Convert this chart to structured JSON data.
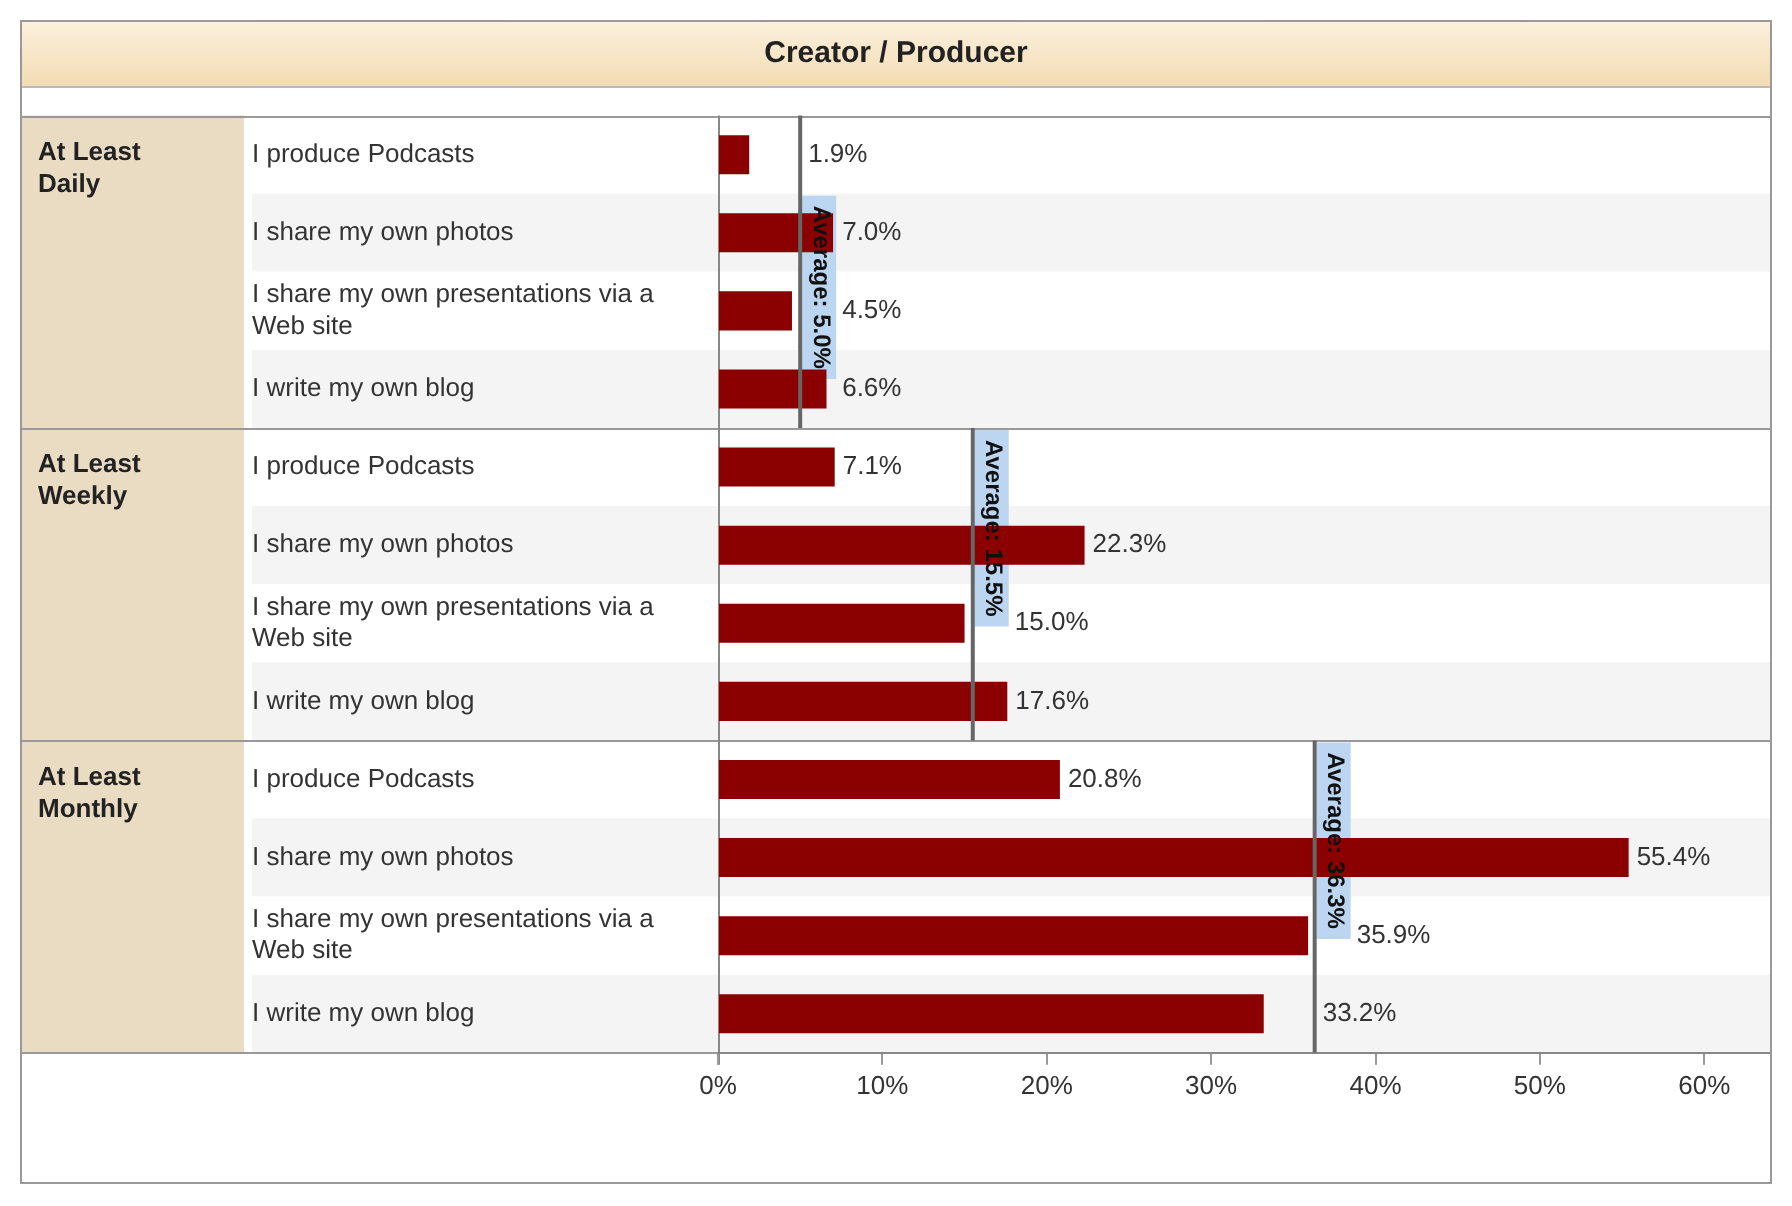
{
  "chart_data": {
    "type": "bar",
    "orientation": "horizontal",
    "title": "Creator / Producer",
    "categories": [
      "I produce Podcasts",
      "I share my own photos",
      "I share my own presentations via a Web site",
      "I write my own blog",
      "I produce Podcasts",
      "I share my own photos",
      "I share my own presentations via a Web site",
      "I write my own blog",
      "I produce Podcasts",
      "I share my own photos",
      "I share my own presentations via a Web site",
      "I write my own blog"
    ],
    "annotations": [
      "At Least Daily",
      "At Least Weekly",
      "At Least Monthly"
    ],
    "series": [
      {
        "color": "#8b0000",
        "values": [
          1.9,
          7.0,
          4.5,
          6.6,
          7.1,
          22.3,
          15.0,
          17.6,
          20.8,
          55.4,
          35.9,
          33.2
        ],
        "value_labels": [
          "1.9%",
          "7.0%",
          "4.5%",
          "6.6%",
          "7.1%",
          "22.3%",
          "15.0%",
          "17.6%",
          "20.8%",
          "55.4%",
          "35.9%",
          "33.2%"
        ]
      }
    ],
    "xlim": [
      0,
      64
    ],
    "xticks": [
      {
        "value": 0,
        "label": "0%"
      },
      {
        "value": 10,
        "label": "10%"
      },
      {
        "value": 20,
        "label": "20%"
      },
      {
        "value": 30,
        "label": "30%"
      },
      {
        "value": 40,
        "label": "40%"
      },
      {
        "value": 50,
        "label": "50%"
      },
      {
        "value": 60,
        "label": "60%"
      }
    ],
    "ref_lines": [
      {
        "axis": "x",
        "value": 5.0,
        "label": "Average: 5.0%",
        "color": "#666666"
      },
      {
        "axis": "x",
        "value": 15.5,
        "label": "Average: 15.5%",
        "color": "#666666"
      },
      {
        "axis": "x",
        "value": 36.3,
        "label": "Average: 36.3%",
        "color": "#666666"
      }
    ],
    "grid": false,
    "legend": false
  }
}
